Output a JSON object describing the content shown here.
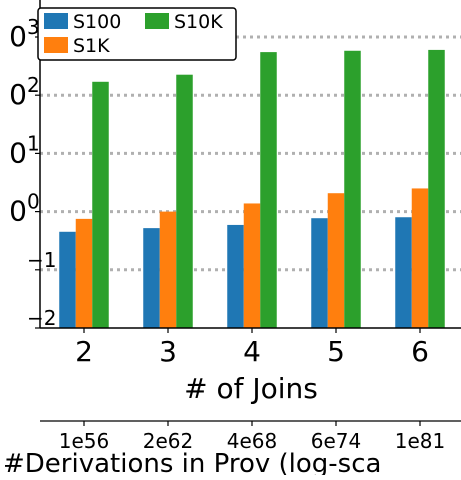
{
  "chart_data": {
    "type": "bar",
    "categories": [
      "2",
      "3",
      "4",
      "5",
      "6"
    ],
    "xlabel": "# of Joins",
    "ylabel": "",
    "yscale": "log",
    "ylim": [
      0.01,
      2000
    ],
    "y_ticks": [
      0.01,
      0.1,
      1,
      10,
      100,
      1000
    ],
    "grid": "horizontal dotted",
    "legend": "top-left",
    "series": [
      {
        "name": "S100",
        "color": "#1f77b4",
        "values": [
          0.45,
          0.52,
          0.59,
          0.77,
          0.8
        ]
      },
      {
        "name": "S1K",
        "color": "#ff7f0e",
        "values": [
          0.75,
          1.0,
          1.38,
          2.07,
          2.5
        ]
      },
      {
        "name": "S10K",
        "color": "#2ca02c",
        "values": [
          170,
          225,
          550,
          580,
          600
        ]
      }
    ],
    "secondary_axis": {
      "label": "#Derivations in Prov (log-sca",
      "tick_labels": [
        "1e56",
        "2e62",
        "4e68",
        "6e74",
        "1e81"
      ]
    }
  },
  "y_tick_labels": [
    {
      "exp": "−2",
      "prefix": ""
    },
    {
      "exp": "−1",
      "prefix": ""
    },
    {
      "exp": "0",
      "prefix": "0"
    },
    {
      "exp": "1",
      "prefix": "0"
    },
    {
      "exp": "2",
      "prefix": "0"
    },
    {
      "exp": "3",
      "prefix": "0"
    }
  ]
}
